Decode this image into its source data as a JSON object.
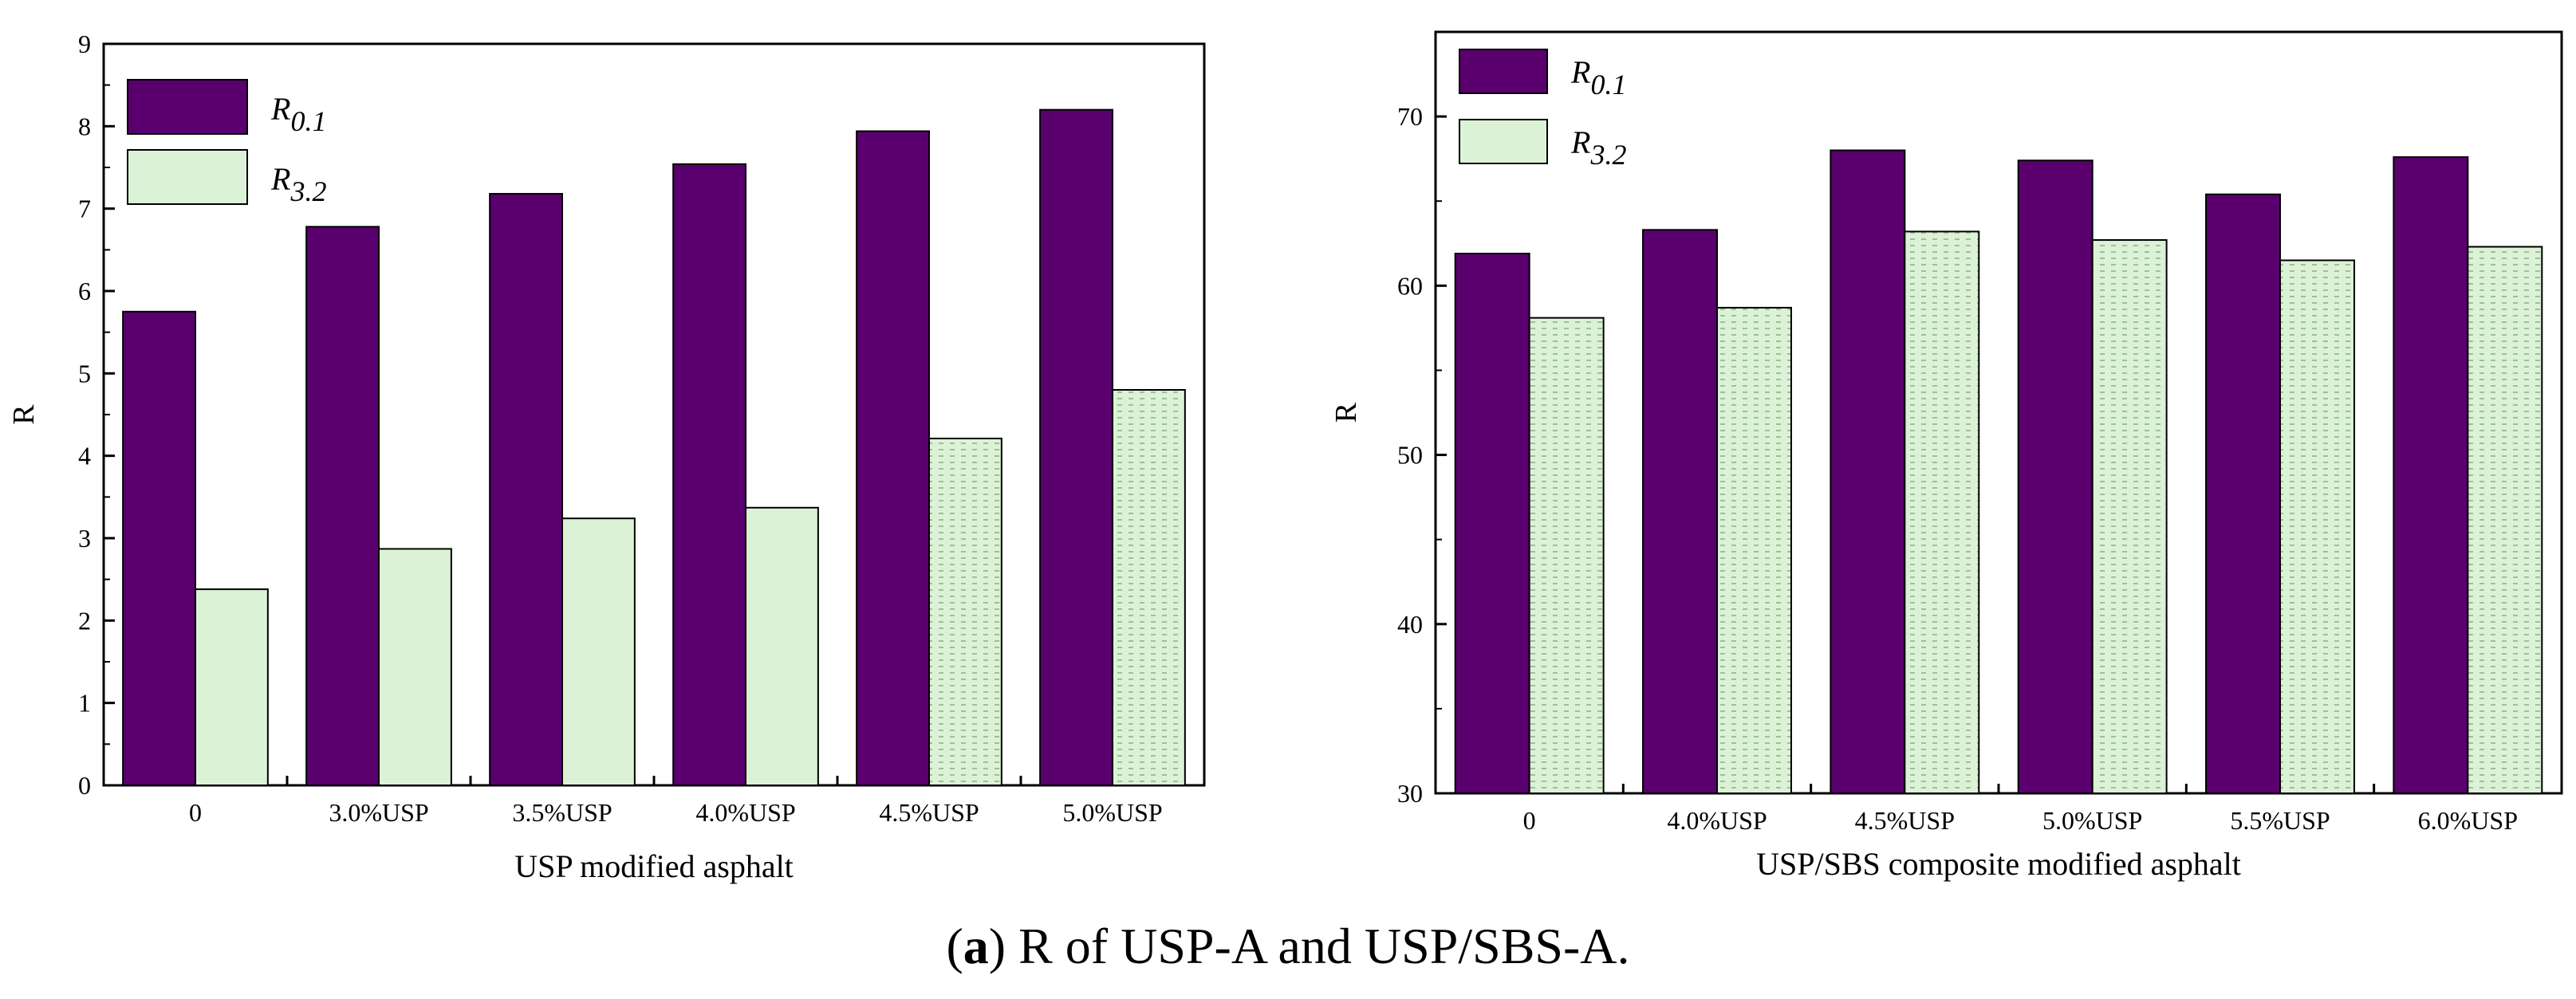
{
  "chart_data": [
    {
      "type": "bar",
      "title": "",
      "xlabel": "USP modified asphalt",
      "ylabel": "R",
      "ylim": [
        0,
        9
      ],
      "yticks": [
        "0",
        "1",
        "2",
        "3",
        "4",
        "5",
        "6",
        "7",
        "8",
        "9"
      ],
      "categories": [
        "0",
        "3.0%USP",
        "3.5%USP",
        "4.0%USP",
        "4.5%USP",
        "5.0%USP"
      ],
      "series": [
        {
          "name": "R0.1",
          "base": "R",
          "sub": "0.1",
          "color": "#5a006e",
          "pattern": "solid",
          "values": [
            5.75,
            6.78,
            7.18,
            7.54,
            7.94,
            8.2
          ]
        },
        {
          "name": "R3.2",
          "base": "R",
          "sub": "3.2",
          "color": "#dcf2d6",
          "pattern": "mixed",
          "values": [
            2.38,
            2.87,
            3.24,
            3.37,
            4.21,
            4.8
          ]
        }
      ],
      "legend": "top-left"
    },
    {
      "type": "bar",
      "title": "",
      "xlabel": "USP/SBS composite modified asphalt",
      "ylabel": "R",
      "ylim": [
        30,
        75
      ],
      "yticks": [
        "30",
        "40",
        "50",
        "60",
        "70"
      ],
      "categories": [
        "0",
        "4.0%USP",
        "4.5%USP",
        "5.0%USP",
        "5.5%USP",
        "6.0%USP"
      ],
      "series": [
        {
          "name": "R0.1",
          "base": "R",
          "sub": "0.1",
          "color": "#5a006e",
          "pattern": "solid",
          "values": [
            61.9,
            63.3,
            68.0,
            67.4,
            65.4,
            67.6
          ]
        },
        {
          "name": "R3.2",
          "base": "R",
          "sub": "3.2",
          "color": "#dcf2d6",
          "pattern": "dotted",
          "values": [
            58.1,
            58.7,
            63.2,
            62.7,
            61.5,
            62.3
          ]
        }
      ],
      "legend": "top-left"
    }
  ],
  "caption": {
    "label": "a",
    "text": " R of USP-A and USP/SBS-A."
  }
}
